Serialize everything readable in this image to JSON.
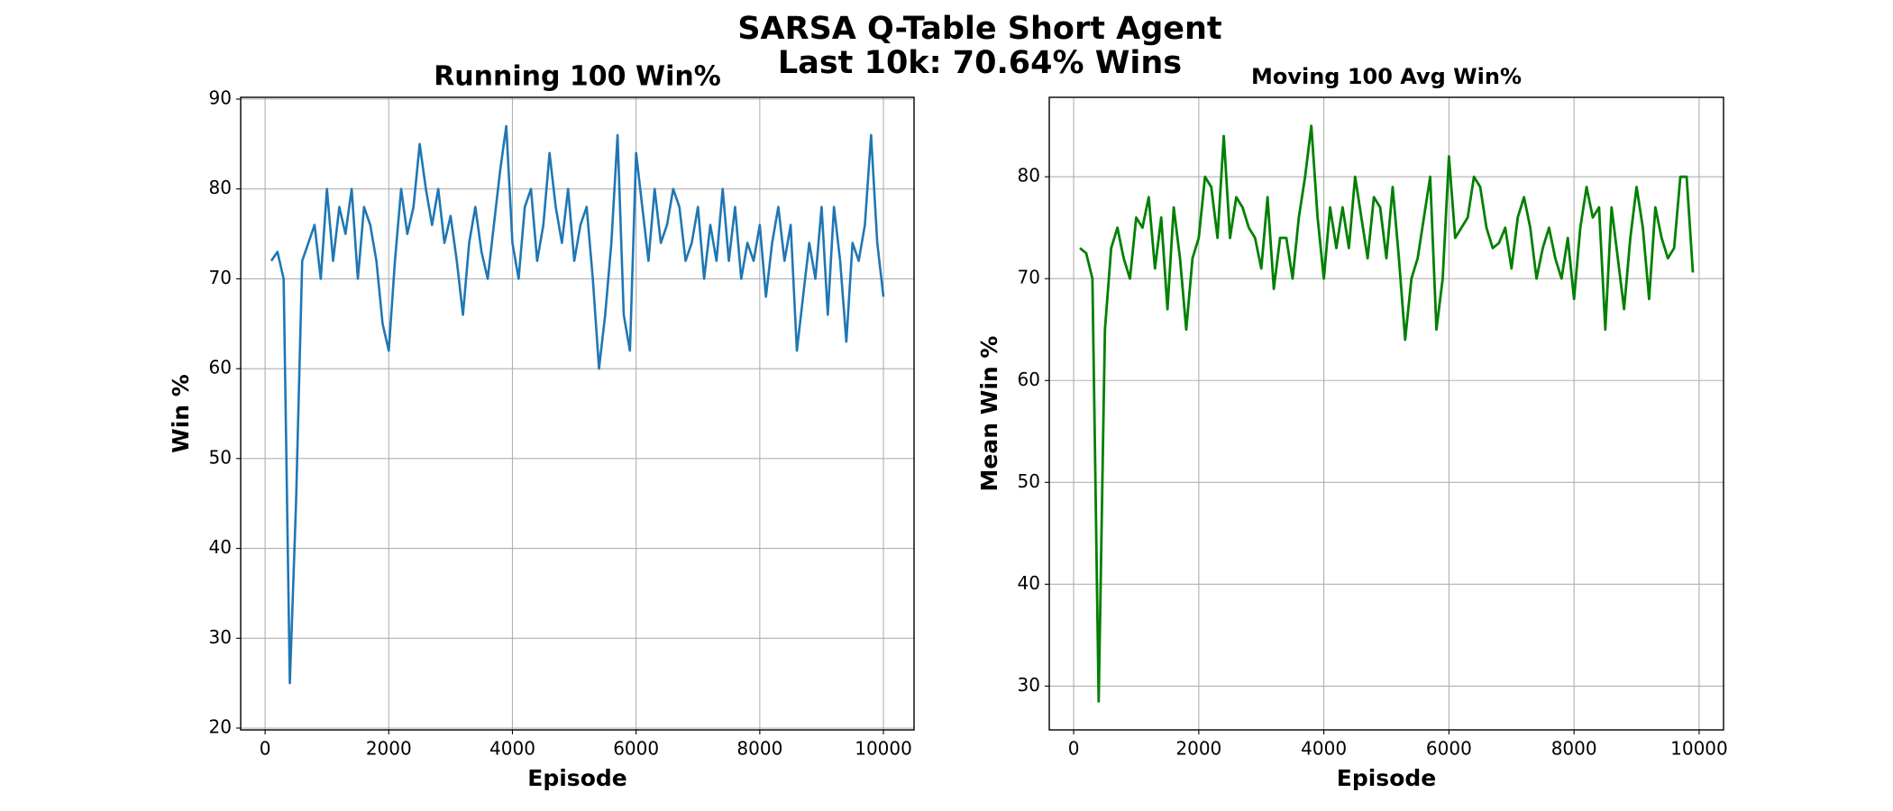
{
  "title": "SARSA Q-Table Short Agent",
  "subtitle": "Last 10k: 70.64% Wins",
  "chart_data": [
    {
      "type": "line",
      "title": "Running 100 Win%",
      "xlabel": "Episode",
      "ylabel": "Win %",
      "color": "#1f77b4",
      "grid": true,
      "xlim": [
        -395,
        10495
      ],
      "ylim": [
        19.8,
        90.2
      ],
      "xticks": [
        0,
        2000,
        4000,
        6000,
        8000,
        10000
      ],
      "yticks": [
        20,
        30,
        40,
        50,
        60,
        70,
        80,
        90
      ],
      "x": [
        100,
        200,
        300,
        400,
        500,
        600,
        700,
        800,
        900,
        1000,
        1100,
        1200,
        1300,
        1400,
        1500,
        1600,
        1700,
        1800,
        1900,
        2000,
        2100,
        2200,
        2300,
        2400,
        2500,
        2600,
        2700,
        2800,
        2900,
        3000,
        3100,
        3200,
        3300,
        3400,
        3500,
        3600,
        3700,
        3800,
        3900,
        4000,
        4100,
        4200,
        4300,
        4400,
        4500,
        4600,
        4700,
        4800,
        4900,
        5000,
        5100,
        5200,
        5300,
        5400,
        5500,
        5600,
        5700,
        5800,
        5900,
        6000,
        6100,
        6200,
        6300,
        6400,
        6500,
        6600,
        6700,
        6800,
        6900,
        7000,
        7100,
        7200,
        7300,
        7400,
        7500,
        7600,
        7700,
        7800,
        7900,
        8000,
        8100,
        8200,
        8300,
        8400,
        8500,
        8600,
        8700,
        8800,
        8900,
        9000,
        9100,
        9200,
        9300,
        9400,
        9500,
        9600,
        9700,
        9800,
        9900,
        10000
      ],
      "values": [
        72,
        73,
        70,
        25,
        45,
        72,
        74,
        76,
        70,
        80,
        72,
        78,
        75,
        80,
        70,
        78,
        76,
        72,
        65,
        62,
        72,
        80,
        75,
        78,
        85,
        80,
        76,
        80,
        74,
        77,
        72,
        66,
        74,
        78,
        73,
        70,
        76,
        82,
        87,
        74,
        70,
        78,
        80,
        72,
        76,
        84,
        78,
        74,
        80,
        72,
        76,
        78,
        70,
        60,
        66,
        74,
        86,
        66,
        62,
        84,
        78,
        72,
        80,
        74,
        76,
        80,
        78,
        72,
        74,
        78,
        70,
        76,
        72,
        80,
        72,
        78,
        70,
        74,
        72,
        76,
        68,
        74,
        78,
        72,
        76,
        62,
        68,
        74,
        70,
        78,
        66,
        78,
        72,
        63,
        74,
        72,
        76,
        86,
        74,
        68
      ]
    },
    {
      "type": "line",
      "title": "Moving 100 Avg Win%",
      "xlabel": "Episode",
      "ylabel": "Mean Win %",
      "color": "#008000",
      "grid": true,
      "xlim": [
        -390,
        10390
      ],
      "ylim": [
        25.7,
        87.8
      ],
      "xticks": [
        0,
        2000,
        4000,
        6000,
        8000,
        10000
      ],
      "yticks": [
        30,
        40,
        50,
        60,
        70,
        80
      ],
      "x": [
        100,
        200,
        300,
        400,
        500,
        600,
        700,
        800,
        900,
        1000,
        1100,
        1200,
        1300,
        1400,
        1500,
        1600,
        1700,
        1800,
        1900,
        2000,
        2100,
        2200,
        2300,
        2400,
        2500,
        2600,
        2700,
        2800,
        2900,
        3000,
        3100,
        3200,
        3300,
        3400,
        3500,
        3600,
        3700,
        3800,
        3900,
        4000,
        4100,
        4200,
        4300,
        4400,
        4500,
        4600,
        4700,
        4800,
        4900,
        5000,
        5100,
        5200,
        5300,
        5400,
        5500,
        5600,
        5700,
        5800,
        5900,
        6000,
        6100,
        6200,
        6300,
        6400,
        6500,
        6600,
        6700,
        6800,
        6900,
        7000,
        7100,
        7200,
        7300,
        7400,
        7500,
        7600,
        7700,
        7800,
        7900,
        8000,
        8100,
        8200,
        8300,
        8400,
        8500,
        8600,
        8700,
        8800,
        8900,
        9000,
        9100,
        9200,
        9300,
        9400,
        9500,
        9600,
        9700,
        9800,
        9900
      ],
      "values": [
        73,
        72.5,
        70,
        28.5,
        65,
        73,
        75,
        72,
        70,
        76,
        75,
        78,
        71,
        76,
        67,
        77,
        72,
        65,
        72,
        74,
        80,
        79,
        74,
        84,
        74,
        78,
        77,
        75,
        74,
        71,
        78,
        69,
        74,
        74,
        70,
        76,
        80,
        85,
        76,
        70,
        77,
        73,
        77,
        73,
        80,
        76,
        72,
        78,
        77,
        72,
        79,
        72,
        64,
        70,
        72,
        76,
        80,
        65,
        70,
        82,
        74,
        75,
        76,
        80,
        79,
        75,
        73,
        73.5,
        75,
        71,
        76,
        78,
        75,
        70,
        73,
        75,
        72,
        70,
        74,
        68,
        75,
        79,
        76,
        77,
        65,
        77,
        72,
        67,
        74,
        79,
        75,
        68,
        77,
        74,
        72,
        73,
        80,
        80,
        70.6
      ]
    }
  ]
}
